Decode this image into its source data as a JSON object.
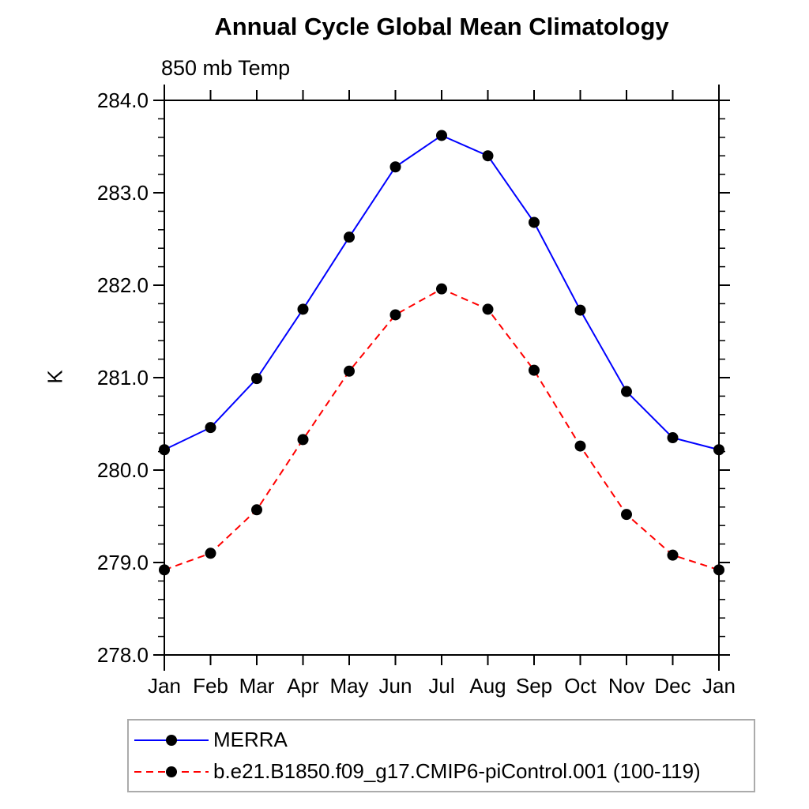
{
  "chart_data": {
    "type": "line",
    "title": "Annual Cycle Global Mean Climatology",
    "subtitle": "850 mb Temp",
    "ylabel": "K",
    "categories": [
      "Jan",
      "Feb",
      "Mar",
      "Apr",
      "May",
      "Jun",
      "Jul",
      "Aug",
      "Sep",
      "Oct",
      "Nov",
      "Dec",
      "Jan"
    ],
    "ylim": [
      278.0,
      284.0
    ],
    "ytick_interval": 1.0,
    "y_minor_interval": 0.2,
    "ytick_labels": [
      "284.0",
      "283.0",
      "282.0",
      "281.0",
      "280.0",
      "279.0",
      "278.0"
    ],
    "grid": false,
    "legend_position": "bottom-left",
    "series": [
      {
        "name": "MERRA",
        "color": "#0000ff",
        "line_style": "solid",
        "marker": "filled-circle",
        "marker_color": "#000000",
        "values": [
          280.22,
          280.46,
          280.99,
          281.74,
          282.52,
          283.28,
          283.62,
          283.4,
          282.68,
          281.73,
          280.85,
          280.35,
          280.22
        ]
      },
      {
        "name": "b.e21.B1850.f09_g17.CMIP6-piControl.001 (100-119)",
        "color": "#ff0000",
        "line_style": "dashed",
        "marker": "filled-circle",
        "marker_color": "#000000",
        "values": [
          278.92,
          279.1,
          279.57,
          280.33,
          281.07,
          281.68,
          281.96,
          281.74,
          281.08,
          280.26,
          279.52,
          279.08,
          278.92
        ]
      }
    ]
  },
  "colors": {
    "axis": "#000000",
    "text": "#000000",
    "background": "#ffffff",
    "legend_border": "#ababab"
  }
}
